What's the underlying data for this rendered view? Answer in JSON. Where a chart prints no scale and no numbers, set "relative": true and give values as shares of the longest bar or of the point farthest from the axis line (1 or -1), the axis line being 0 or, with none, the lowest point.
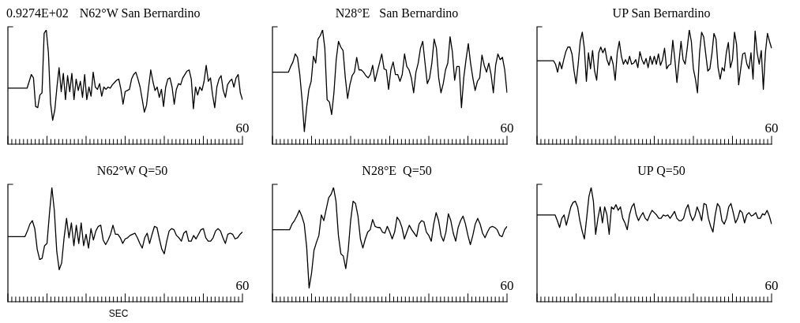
{
  "chart_data": [
    {
      "type": "line",
      "title": "N62°W San Bernardino",
      "annotations": [
        "0.9274E+02",
        "60"
      ],
      "color": "#000000",
      "relative": true,
      "categories": [
        null,
        null,
        null,
        null,
        null,
        null,
        null,
        null,
        null,
        null,
        null,
        null,
        null,
        null,
        null,
        null,
        null,
        null,
        null,
        null,
        null,
        null,
        null,
        null,
        null,
        null,
        null,
        null,
        null,
        null,
        null,
        null,
        null,
        null,
        null,
        null,
        null,
        null,
        null,
        null,
        null,
        null,
        null,
        null,
        null,
        null,
        null,
        null,
        null,
        null,
        null,
        null,
        null,
        null,
        null,
        null,
        null,
        null,
        null,
        null,
        null,
        null,
        null,
        null,
        null,
        null,
        null,
        null,
        null,
        null,
        null,
        null,
        null,
        null,
        null,
        null,
        null,
        null,
        null,
        null,
        null,
        null,
        null,
        null,
        null,
        null,
        null,
        null,
        null,
        null,
        null,
        null,
        null,
        null,
        null,
        null,
        null,
        null,
        null,
        null,
        null,
        null,
        null,
        null,
        null,
        null,
        null,
        null,
        null,
        null,
        null
      ],
      "values": [
        0.49,
        0.49,
        0.49,
        0.49,
        0.49,
        0.49,
        0.49,
        0.49,
        0.49,
        0.49,
        0.55,
        0.61,
        0.58,
        0.33,
        0.32,
        0.43,
        0.45,
        0.97,
        1,
        0.8,
        0.36,
        0.21,
        0.3,
        0.5,
        0.67,
        0.46,
        0.62,
        0.39,
        0.6,
        0.46,
        0.62,
        0.39,
        0.57,
        0.47,
        0.55,
        0.41,
        0.61,
        0.39,
        0.5,
        0.42,
        0.63,
        0.5,
        0.48,
        0.53,
        0.42,
        0.5,
        0.48,
        0.5,
        0.49,
        0.52,
        0.54,
        0.56,
        0.57,
        0.48,
        0.35,
        0.46,
        0.47,
        0.48,
        0.57,
        0.61,
        0.63,
        0.57,
        0.5,
        0.39,
        0.28,
        0.34,
        0.5,
        0.65,
        0.55,
        0.47,
        0.5,
        0.41,
        0.48,
        0.33,
        0.5,
        0.57,
        0.58,
        0.5,
        0.35,
        0.48,
        0.53,
        0.52,
        0.58,
        0.61,
        0.64,
        0.65,
        0.57,
        0.31,
        0.5,
        0.43,
        0.5,
        0.47,
        0.55,
        0.69,
        0.55,
        0.58,
        0.43,
        0.32,
        0.5,
        0.57,
        0.6,
        0.47,
        0.41,
        0.52,
        0.55,
        0.57,
        0.5,
        0.58,
        0.61,
        0.45,
        0.39
      ]
    },
    {
      "type": "line",
      "title": "N28°E   San Bernardino",
      "annotations": [
        "60"
      ],
      "color": "#000000",
      "relative": true,
      "categories": [
        null,
        null,
        null,
        null,
        null,
        null,
        null,
        null,
        null,
        null,
        null,
        null,
        null,
        null,
        null,
        null,
        null,
        null,
        null,
        null,
        null,
        null,
        null,
        null,
        null,
        null,
        null,
        null,
        null,
        null,
        null,
        null,
        null,
        null,
        null,
        null,
        null,
        null,
        null,
        null,
        null,
        null,
        null,
        null,
        null,
        null,
        null,
        null,
        null,
        null,
        null,
        null,
        null,
        null,
        null,
        null,
        null,
        null,
        null,
        null,
        null,
        null,
        null,
        null,
        null,
        null,
        null,
        null,
        null,
        null,
        null,
        null,
        null,
        null,
        null,
        null,
        null,
        null,
        null,
        null,
        null,
        null,
        null,
        null,
        null,
        null,
        null,
        null,
        null,
        null,
        null,
        null,
        null,
        null,
        null,
        null,
        null,
        null,
        null,
        null,
        null,
        null,
        null,
        null
      ],
      "values": [
        0.63,
        0.63,
        0.63,
        0.63,
        0.63,
        0.63,
        0.63,
        0.63,
        0.68,
        0.72,
        0.79,
        0.76,
        0.61,
        0.39,
        0.11,
        0.32,
        0.48,
        0.55,
        0.77,
        0.71,
        0.92,
        0.95,
        1,
        0.84,
        0.39,
        0.37,
        0.26,
        0.45,
        0.74,
        0.9,
        0.85,
        0.82,
        0.58,
        0.4,
        0.52,
        0.6,
        0.63,
        0.76,
        0.65,
        0.65,
        0.63,
        0.6,
        0.58,
        0.61,
        0.69,
        0.55,
        0.63,
        0.71,
        0.79,
        0.66,
        0.65,
        0.48,
        0.65,
        0.72,
        0.61,
        0.61,
        0.55,
        0.61,
        0.79,
        0.68,
        0.65,
        0.58,
        0.45,
        0.63,
        0.71,
        0.84,
        0.9,
        0.71,
        0.53,
        0.58,
        0.71,
        0.92,
        0.84,
        0.58,
        0.45,
        0.53,
        0.65,
        0.71,
        0.94,
        0.81,
        0.56,
        0.68,
        0.68,
        0.32,
        0.58,
        0.74,
        0.88,
        0.71,
        0.58,
        0.47,
        0.55,
        0.58,
        0.78,
        0.69,
        0.63,
        0.71,
        0.61,
        0.45,
        0.69,
        0.79,
        0.74,
        0.76,
        0.65,
        0.45
      ]
    },
    {
      "type": "line",
      "title": "UP San Bernardino",
      "annotations": [
        "60"
      ],
      "color": "#000000",
      "relative": true,
      "categories": [
        null,
        null,
        null,
        null,
        null,
        null,
        null,
        null,
        null,
        null,
        null,
        null,
        null,
        null,
        null,
        null,
        null,
        null,
        null,
        null,
        null,
        null,
        null,
        null,
        null,
        null,
        null,
        null,
        null,
        null,
        null,
        null,
        null,
        null,
        null,
        null,
        null,
        null,
        null,
        null,
        null,
        null,
        null,
        null,
        null,
        null,
        null,
        null,
        null,
        null,
        null,
        null,
        null,
        null,
        null,
        null,
        null,
        null,
        null,
        null,
        null,
        null,
        null,
        null,
        null,
        null,
        null,
        null,
        null,
        null,
        null,
        null,
        null,
        null,
        null,
        null,
        null,
        null,
        null,
        null,
        null,
        null,
        null,
        null,
        null,
        null,
        null,
        null,
        null,
        null,
        null,
        null,
        null,
        null,
        null,
        null,
        null,
        null,
        null,
        null,
        null,
        null,
        null,
        null,
        null,
        null,
        null,
        null,
        null,
        null,
        null,
        null,
        null,
        null,
        null
      ],
      "values": [
        0.73,
        0.73,
        0.73,
        0.73,
        0.73,
        0.73,
        0.73,
        0.73,
        0.73,
        0.7,
        0.63,
        0.72,
        0.66,
        0.74,
        0.81,
        0.85,
        0.85,
        0.79,
        0.64,
        0.53,
        0.7,
        0.9,
        0.98,
        0.84,
        0.55,
        0.8,
        0.66,
        0.82,
        0.64,
        0.56,
        0.8,
        0.85,
        0.8,
        0.84,
        0.74,
        0.69,
        0.77,
        0.7,
        0.56,
        0.8,
        0.9,
        0.77,
        0.7,
        0.74,
        0.7,
        0.77,
        0.7,
        0.71,
        0.74,
        0.67,
        0.81,
        0.74,
        0.7,
        0.75,
        0.67,
        0.77,
        0.7,
        0.77,
        0.7,
        0.79,
        0.69,
        0.74,
        0.84,
        0.66,
        0.69,
        0.7,
        0.91,
        0.74,
        0.54,
        0.72,
        0.9,
        0.74,
        0.7,
        0.84,
        1,
        0.9,
        0.66,
        0.57,
        0.45,
        0.8,
        0.98,
        0.94,
        0.79,
        0.64,
        0.66,
        0.79,
        0.97,
        0.92,
        0.67,
        0.57,
        0.67,
        0.64,
        0.8,
        0.89,
        0.67,
        0.74,
        0.98,
        0.87,
        0.52,
        0.66,
        0.79,
        0.8,
        0.7,
        0.66,
        0.8,
        0.57,
        0.99,
        0.8,
        0.7,
        0.82,
        0.48,
        0.8,
        0.97,
        0.9,
        0.84
      ]
    },
    {
      "type": "line",
      "title": "N62°W Q=50",
      "annotations": [
        "60"
      ],
      "xlabel": "SEC",
      "color": "#000000",
      "relative": true,
      "categories": [
        null,
        null,
        null,
        null,
        null,
        null,
        null,
        null,
        null,
        null,
        null,
        null,
        null,
        null,
        null,
        null,
        null,
        null,
        null,
        null,
        null,
        null,
        null,
        null,
        null,
        null,
        null,
        null,
        null,
        null,
        null,
        null,
        null,
        null,
        null,
        null,
        null,
        null,
        null,
        null,
        null,
        null,
        null,
        null,
        null,
        null,
        null,
        null,
        null,
        null,
        null,
        null,
        null,
        null,
        null,
        null,
        null,
        null,
        null,
        null,
        null,
        null,
        null,
        null,
        null,
        null,
        null,
        null,
        null,
        null,
        null,
        null,
        null,
        null,
        null,
        null,
        null,
        null,
        null,
        null,
        null,
        null,
        null,
        null,
        null,
        null,
        null,
        null,
        null,
        null,
        null,
        null,
        null,
        null,
        null,
        null,
        null
      ],
      "values": [
        0.57,
        0.57,
        0.57,
        0.57,
        0.57,
        0.57,
        0.57,
        0.57,
        0.62,
        0.68,
        0.71,
        0.64,
        0.46,
        0.37,
        0.38,
        0.49,
        0.51,
        0.77,
        1,
        0.8,
        0.44,
        0.28,
        0.34,
        0.56,
        0.73,
        0.56,
        0.69,
        0.49,
        0.67,
        0.51,
        0.69,
        0.49,
        0.59,
        0.47,
        0.64,
        0.54,
        0.62,
        0.66,
        0.67,
        0.54,
        0.5,
        0.54,
        0.59,
        0.67,
        0.59,
        0.59,
        0.56,
        0.51,
        0.55,
        0.56,
        0.58,
        0.59,
        0.6,
        0.56,
        0.51,
        0.47,
        0.56,
        0.6,
        0.51,
        0.59,
        0.66,
        0.65,
        0.55,
        0.46,
        0.42,
        0.53,
        0.62,
        0.64,
        0.63,
        0.58,
        0.56,
        0.53,
        0.6,
        0.62,
        0.53,
        0.53,
        0.58,
        0.55,
        0.59,
        0.63,
        0.64,
        0.56,
        0.53,
        0.53,
        0.56,
        0.62,
        0.64,
        0.62,
        0.56,
        0.51,
        0.59,
        0.6,
        0.59,
        0.55,
        0.56,
        0.59,
        0.61
      ]
    },
    {
      "type": "line",
      "title": "N28°E  Q=50",
      "annotations": [
        "60"
      ],
      "color": "#000000",
      "relative": true,
      "categories": [
        null,
        null,
        null,
        null,
        null,
        null,
        null,
        null,
        null,
        null,
        null,
        null,
        null,
        null,
        null,
        null,
        null,
        null,
        null,
        null,
        null,
        null,
        null,
        null,
        null,
        null,
        null,
        null,
        null,
        null,
        null,
        null,
        null,
        null,
        null,
        null,
        null,
        null,
        null,
        null,
        null,
        null,
        null,
        null,
        null,
        null,
        null,
        null,
        null,
        null,
        null,
        null,
        null,
        null,
        null,
        null,
        null,
        null,
        null,
        null,
        null,
        null,
        null,
        null,
        null,
        null,
        null,
        null,
        null,
        null,
        null,
        null,
        null,
        null,
        null,
        null,
        null,
        null,
        null,
        null,
        null,
        null,
        null,
        null,
        null,
        null,
        null,
        null,
        null,
        null,
        null,
        null,
        null,
        null,
        null,
        null,
        null
      ],
      "values": [
        0.63,
        0.63,
        0.63,
        0.63,
        0.63,
        0.63,
        0.63,
        0.63,
        0.68,
        0.71,
        0.75,
        0.8,
        0.75,
        0.68,
        0.48,
        0.12,
        0.25,
        0.45,
        0.52,
        0.58,
        0.76,
        0.71,
        0.81,
        0.91,
        0.94,
        1,
        0.88,
        0.58,
        0.42,
        0.4,
        0.29,
        0.45,
        0.71,
        0.88,
        0.86,
        0.75,
        0.55,
        0.47,
        0.55,
        0.61,
        0.63,
        0.72,
        0.66,
        0.65,
        0.65,
        0.61,
        0.6,
        0.66,
        0.61,
        0.55,
        0.61,
        0.74,
        0.71,
        0.65,
        0.55,
        0.61,
        0.67,
        0.63,
        0.6,
        0.57,
        0.68,
        0.71,
        0.7,
        0.61,
        0.58,
        0.53,
        0.68,
        0.78,
        0.71,
        0.58,
        0.53,
        0.61,
        0.77,
        0.71,
        0.6,
        0.53,
        0.65,
        0.71,
        0.75,
        0.68,
        0.58,
        0.5,
        0.58,
        0.68,
        0.73,
        0.68,
        0.6,
        0.56,
        0.61,
        0.65,
        0.66,
        0.65,
        0.63,
        0.58,
        0.57,
        0.63,
        0.66
      ]
    },
    {
      "type": "line",
      "title": "UP Q=50",
      "annotations": [
        "60"
      ],
      "color": "#000000",
      "relative": true,
      "categories": [
        null,
        null,
        null,
        null,
        null,
        null,
        null,
        null,
        null,
        null,
        null,
        null,
        null,
        null,
        null,
        null,
        null,
        null,
        null,
        null,
        null,
        null,
        null,
        null,
        null,
        null,
        null,
        null,
        null,
        null,
        null,
        null,
        null,
        null,
        null,
        null,
        null,
        null,
        null,
        null,
        null,
        null,
        null,
        null,
        null,
        null,
        null,
        null,
        null,
        null,
        null,
        null,
        null,
        null,
        null,
        null,
        null,
        null,
        null,
        null,
        null,
        null,
        null,
        null,
        null,
        null,
        null,
        null,
        null,
        null,
        null,
        null,
        null,
        null,
        null,
        null,
        null,
        null,
        null,
        null,
        null,
        null,
        null,
        null,
        null,
        null,
        null,
        null,
        null,
        null,
        null,
        null,
        null,
        null,
        null,
        null,
        null,
        null,
        null,
        null,
        null,
        null,
        null,
        null,
        null
      ],
      "values": [
        0.76,
        0.76,
        0.76,
        0.76,
        0.76,
        0.76,
        0.76,
        0.76,
        0.76,
        0.71,
        0.65,
        0.73,
        0.76,
        0.67,
        0.75,
        0.83,
        0.87,
        0.88,
        0.83,
        0.71,
        0.62,
        0.55,
        0.73,
        0.92,
        1,
        0.88,
        0.59,
        0.73,
        0.83,
        0.69,
        0.83,
        0.76,
        0.59,
        0.83,
        0.81,
        0.85,
        0.8,
        0.83,
        0.73,
        0.69,
        0.63,
        0.76,
        0.83,
        0.86,
        0.76,
        0.71,
        0.75,
        0.78,
        0.73,
        0.71,
        0.76,
        0.8,
        0.78,
        0.76,
        0.73,
        0.73,
        0.76,
        0.75,
        0.76,
        0.73,
        0.76,
        0.79,
        0.73,
        0.71,
        0.71,
        0.73,
        0.81,
        0.85,
        0.76,
        0.71,
        0.75,
        0.83,
        0.78,
        0.71,
        0.86,
        0.85,
        0.73,
        0.66,
        0.61,
        0.76,
        0.86,
        0.83,
        0.71,
        0.68,
        0.73,
        0.83,
        0.86,
        0.78,
        0.69,
        0.73,
        0.8,
        0.78,
        0.69,
        0.76,
        0.78,
        0.75,
        0.76,
        0.78,
        0.73,
        0.73,
        0.77,
        0.76,
        0.8,
        0.75,
        0.68
      ]
    }
  ]
}
